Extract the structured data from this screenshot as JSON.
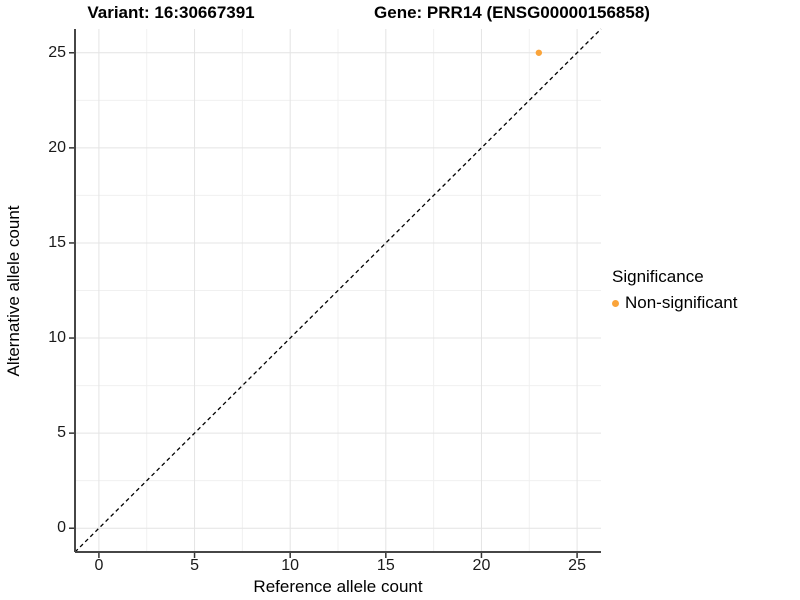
{
  "figure": {
    "title_left": "Variant: 16:30667391",
    "title_right": "Gene: PRR14 (ENSG00000156858)"
  },
  "axes": {
    "x": {
      "label": "Reference allele count"
    },
    "y": {
      "label": "Alternative allele count"
    }
  },
  "legend": {
    "title": "Significance",
    "items": [
      {
        "label": "Non-significant",
        "color": "#FAA43A",
        "marker": "circle-icon"
      }
    ]
  },
  "colors": {
    "point": "#FAA43A",
    "grid_major": "#E4E4E4",
    "grid_minor": "#F0F0F0",
    "axis_line": "#464646",
    "tick_mark": "#333333",
    "identity_line": "#000000",
    "background": "#FFFFFF"
  },
  "chart_data": {
    "type": "scatter",
    "title": "Variant: 16:30667391 | Gene: PRR14 (ENSG00000156858)",
    "xlabel": "Reference allele count",
    "ylabel": "Alternative allele count",
    "xlim": [
      -1.25,
      26.25
    ],
    "ylim": [
      -1.25,
      26.25
    ],
    "x_ticks": [
      0,
      5,
      10,
      15,
      20,
      25
    ],
    "y_ticks": [
      0,
      5,
      10,
      15,
      20,
      25
    ],
    "x_minor_ticks": [
      2.5,
      7.5,
      12.5,
      17.5,
      22.5
    ],
    "y_minor_ticks": [
      2.5,
      7.5,
      12.5,
      17.5,
      22.5
    ],
    "grid": "major+minor",
    "legend_title": "Significance",
    "legend_position": "right",
    "series": [
      {
        "name": "Non-significant",
        "color": "#FAA43A",
        "points": [
          {
            "x": 23,
            "y": 25
          }
        ]
      }
    ],
    "reference_line": {
      "type": "identity y=x",
      "from": [
        -1.25,
        -1.25
      ],
      "to": [
        26.25,
        26.25
      ],
      "style": "dashed",
      "color": "#000000"
    }
  }
}
